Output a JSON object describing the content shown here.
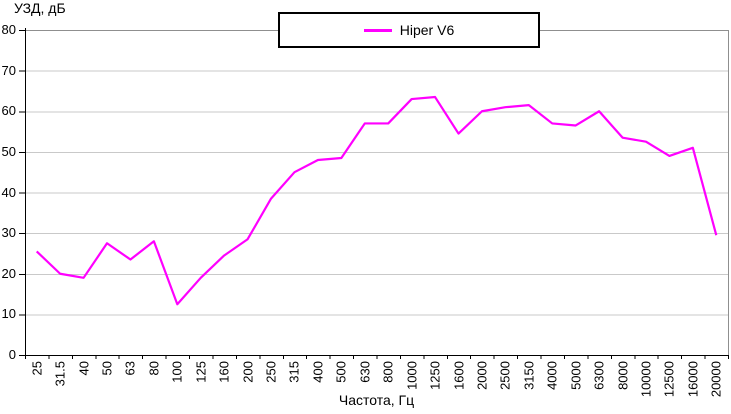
{
  "chart_data": {
    "type": "line",
    "title": "",
    "xlabel": "Частота, Гц",
    "ylabel": "УЗД, дБ",
    "categories": [
      "25",
      "31.5",
      "40",
      "50",
      "63",
      "80",
      "100",
      "125",
      "160",
      "200",
      "250",
      "315",
      "400",
      "500",
      "630",
      "800",
      "1000",
      "1250",
      "1600",
      "2000",
      "2500",
      "3150",
      "4000",
      "5000",
      "6300",
      "8000",
      "10000",
      "12500",
      "16000",
      "20000"
    ],
    "series": [
      {
        "name": "Hiper V6",
        "color": "#FF00FF",
        "values": [
          25.5,
          20,
          19,
          27.5,
          23.5,
          28,
          12.5,
          19,
          24.5,
          28.5,
          38.5,
          45,
          48,
          48.5,
          57,
          57,
          63,
          63.5,
          54.5,
          60,
          61,
          61.5,
          57,
          56.5,
          60,
          53.5,
          52.5,
          49,
          51,
          29.5
        ]
      }
    ],
    "ylim": [
      0,
      80
    ],
    "y_ticks": [
      0,
      10,
      20,
      30,
      40,
      50,
      60,
      70,
      80
    ],
    "grid": "horizontal",
    "legend_position": "top-center",
    "colors": {
      "gridline": "#C9C9C9",
      "plot_border": "#8F8F8F",
      "axis": "#000000",
      "background": "#FFFFFF"
    }
  }
}
